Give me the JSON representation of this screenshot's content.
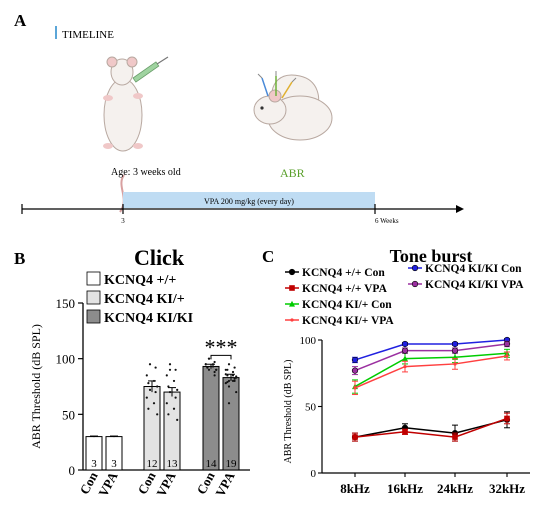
{
  "panels": {
    "a": {
      "letter": "A",
      "timeline_label": "TIMELINE",
      "age_label": "Age: 3 weeks old",
      "abr_label": "ABR",
      "abr_color": "#5aa02c",
      "vpa_label": "VPA 200 mg/kg (every day)",
      "tick_start": "3",
      "tick_end": "6 Weeks",
      "vpa_bar_color": "#bfdcf3"
    },
    "b": {
      "letter": "B"
    },
    "c": {
      "letter": "C"
    }
  },
  "chart_data": [
    {
      "type": "bar",
      "title": "Click",
      "ylabel": "ABR Threshold (dB SPL)",
      "ylim": [
        0,
        150
      ],
      "yticks": [
        0,
        50,
        100,
        150
      ],
      "legend": {
        "placement": "top-left",
        "entries": [
          {
            "name": "KCNQ4 +/+",
            "color": "#ffffff"
          },
          {
            "name": "KCNQ4 KI/+",
            "color": "#e3e3e3"
          },
          {
            "name": "KCNQ4 KI/KI",
            "color": "#8c8c8c"
          }
        ]
      },
      "categories": [
        "Con",
        "VPA",
        "Con",
        "VPA",
        "Con",
        "VPA"
      ],
      "groups": [
        "KCNQ4 +/+",
        "KCNQ4 +/+",
        "KCNQ4 KI/+",
        "KCNQ4 KI/+",
        "KCNQ4 KI/KI",
        "KCNQ4 KI/KI"
      ],
      "values": [
        30,
        30,
        75,
        70,
        93,
        83
      ],
      "errors": [
        0.5,
        0.5,
        5,
        4,
        2,
        3
      ],
      "n_labels": [
        "3",
        "3",
        "12",
        "13",
        "14",
        "19"
      ],
      "colors": [
        "#ffffff",
        "#ffffff",
        "#e3e3e3",
        "#e3e3e3",
        "#8c8c8c",
        "#8c8c8c"
      ],
      "points": [
        [],
        [],
        [
          95,
          92,
          85,
          80,
          78,
          75,
          72,
          70,
          65,
          60,
          55,
          50
        ],
        [
          90,
          90,
          85,
          80,
          75,
          72,
          70,
          65,
          60,
          55,
          50,
          45,
          95
        ],
        [
          100,
          97,
          95,
          95,
          92,
          90,
          90,
          88,
          95,
          93,
          92,
          90,
          100,
          85
        ],
        [
          95,
          92,
          90,
          88,
          85,
          83,
          80,
          80,
          78,
          85,
          90,
          70,
          75,
          82,
          86,
          80,
          79,
          84,
          60
        ]
      ],
      "significance": {
        "label": "***",
        "between": [
          4,
          5
        ]
      }
    },
    {
      "type": "line",
      "title": "Tone burst",
      "ylabel": "ABR Threshold (dB SPL)",
      "ylim": [
        0,
        100
      ],
      "yticks": [
        0,
        50,
        100
      ],
      "categories": [
        "8kHz",
        "16kHz",
        "24kHz",
        "32kHz"
      ],
      "series": [
        {
          "name": "KCNQ4 +/+ Con",
          "color": "#000000",
          "marker": "circle",
          "values": [
            27,
            34,
            30,
            40
          ],
          "errors": [
            3,
            3,
            6,
            6
          ]
        },
        {
          "name": "KCNQ4 +/+ VPA",
          "color": "#c00000",
          "marker": "square",
          "values": [
            27,
            31,
            27,
            41
          ],
          "errors": [
            3,
            2,
            3,
            4
          ]
        },
        {
          "name": "KCNQ4 KI/+ Con",
          "color": "#00cc00",
          "marker": "triangle",
          "values": [
            65,
            86,
            87,
            90
          ],
          "errors": [
            5,
            4,
            4,
            3
          ]
        },
        {
          "name": "KCNQ4 KI/+ VPA",
          "color": "#ff4040",
          "marker": "none",
          "values": [
            64,
            80,
            82,
            88
          ],
          "errors": [
            5,
            4,
            4,
            3
          ]
        },
        {
          "name": "KCNQ4 KI/KI Con",
          "color": "#2020e0",
          "marker": "circle",
          "values": [
            85,
            97,
            97,
            100
          ],
          "errors": [
            2,
            1,
            1,
            1
          ]
        },
        {
          "name": "KCNQ4 KI/KI VPA",
          "color": "#9b30a0",
          "marker": "circle",
          "values": [
            77,
            92,
            92,
            97
          ],
          "errors": [
            3,
            2,
            2,
            2
          ]
        }
      ]
    }
  ]
}
